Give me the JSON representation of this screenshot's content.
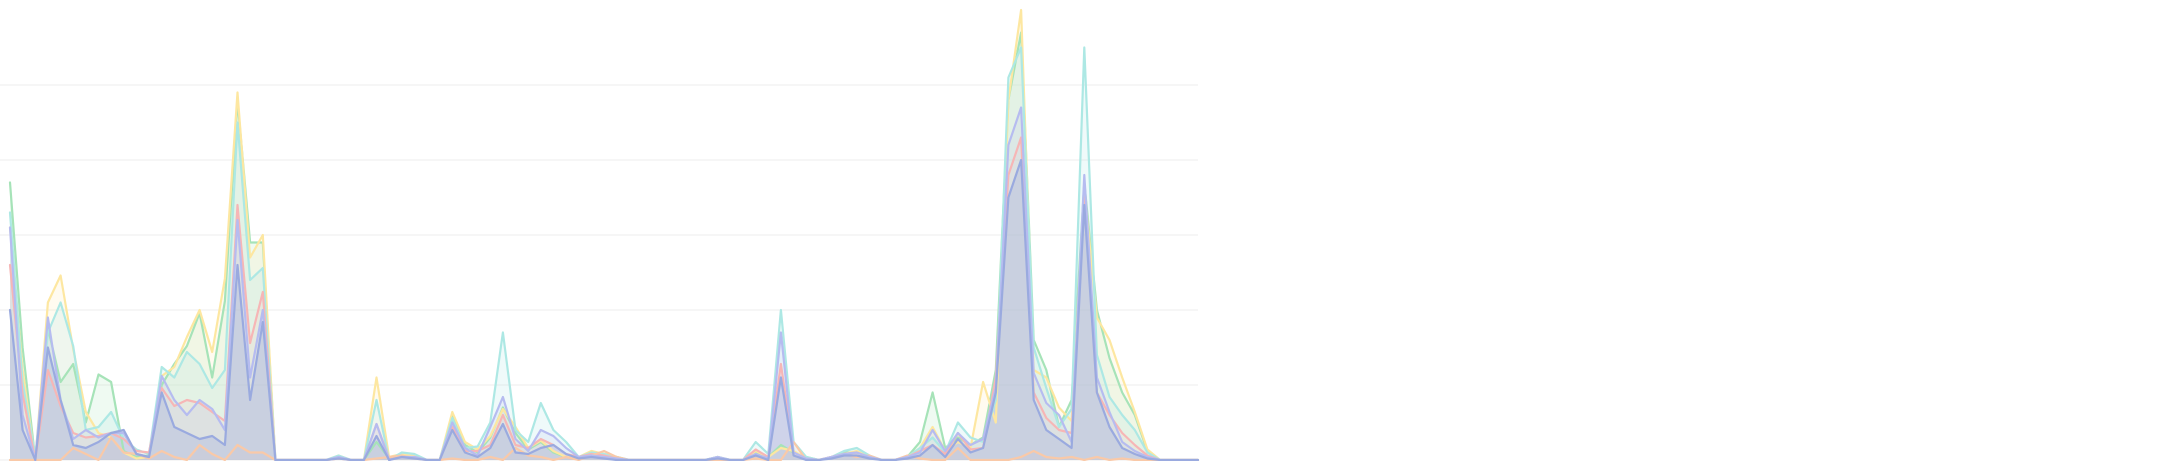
{
  "chart_data": {
    "type": "area",
    "title": "",
    "xlabel": "",
    "ylabel": "",
    "ylim": [
      0,
      300
    ],
    "grid": true,
    "legend": "none",
    "x": [
      0,
      1,
      2,
      3,
      4,
      5,
      6,
      7,
      8,
      9,
      10,
      11,
      12,
      13,
      14,
      15,
      16,
      17,
      18,
      19,
      20,
      21,
      22,
      23,
      24,
      25,
      26,
      27,
      28,
      29,
      30,
      31,
      32,
      33,
      34,
      35,
      36,
      37,
      38,
      39,
      40,
      41,
      42,
      43,
      44,
      45,
      46,
      47,
      48,
      49,
      50,
      51,
      52,
      53,
      54,
      55,
      56,
      57,
      58,
      59,
      60,
      61,
      62,
      63,
      64,
      65,
      66,
      67,
      68,
      69,
      70,
      71,
      72,
      73,
      74,
      75,
      76,
      77,
      78,
      79,
      80,
      81,
      82,
      83,
      84,
      85,
      86,
      87,
      88,
      89,
      90,
      91,
      92,
      93,
      94
    ],
    "series": [
      {
        "color": "#a6e3b8",
        "fill_opacity": 0.18,
        "values": [
          185,
          75,
          0,
          88,
          52,
          64,
          25,
          57,
          52,
          6,
          2,
          3,
          50,
          64,
          76,
          98,
          55,
          106,
          240,
          145,
          145,
          0,
          0,
          0,
          0,
          0,
          2,
          0,
          0,
          12,
          1,
          3,
          3,
          0,
          0,
          30,
          10,
          5,
          15,
          35,
          18,
          7,
          12,
          5,
          2,
          2,
          5,
          4,
          2,
          0,
          0,
          0,
          0,
          0,
          0,
          0,
          2,
          0,
          0,
          5,
          2,
          10,
          5,
          2,
          0,
          2,
          5,
          5,
          2,
          0,
          0,
          2,
          12,
          45,
          8,
          15,
          10,
          15,
          60,
          240,
          285,
          80,
          60,
          22,
          40,
          185,
          100,
          68,
          45,
          30,
          6,
          0,
          0,
          0,
          0
        ]
      },
      {
        "color": "#fde7a1",
        "fill_opacity": 0.16,
        "values": [
          155,
          60,
          0,
          105,
          123,
          74,
          32,
          18,
          15,
          5,
          1,
          2,
          56,
          62,
          82,
          100,
          72,
          121,
          245,
          135,
          150,
          0,
          0,
          0,
          0,
          0,
          3,
          0,
          0,
          55,
          2,
          4,
          3,
          0,
          0,
          32,
          12,
          7,
          16,
          34,
          22,
          8,
          13,
          6,
          2,
          2,
          6,
          4,
          2,
          0,
          0,
          0,
          0,
          0,
          0,
          0,
          2,
          0,
          0,
          6,
          2,
          8,
          6,
          1,
          0,
          2,
          4,
          6,
          2,
          0,
          0,
          2,
          8,
          22,
          6,
          12,
          8,
          52,
          25,
          240,
          300,
          60,
          55,
          35,
          26,
          180,
          95,
          80,
          55,
          32,
          7,
          0,
          0,
          0,
          0
        ]
      },
      {
        "color": "#ade8e4",
        "fill_opacity": 0.2,
        "values": [
          165,
          52,
          2,
          85,
          105,
          76,
          20,
          22,
          32,
          14,
          7,
          4,
          62,
          55,
          72,
          64,
          48,
          60,
          225,
          120,
          128,
          0,
          0,
          0,
          0,
          0,
          3,
          0,
          0,
          40,
          0,
          5,
          4,
          0,
          0,
          28,
          8,
          9,
          25,
          85,
          20,
          12,
          38,
          20,
          12,
          2,
          5,
          4,
          2,
          0,
          0,
          0,
          0,
          0,
          0,
          0,
          2,
          0,
          0,
          12,
          4,
          100,
          12,
          2,
          0,
          2,
          6,
          8,
          3,
          0,
          0,
          2,
          8,
          15,
          5,
          25,
          15,
          12,
          40,
          255,
          275,
          75,
          48,
          22,
          34,
          275,
          70,
          42,
          30,
          20,
          5,
          0,
          0,
          0,
          0
        ]
      },
      {
        "color": "#f6b6b6",
        "fill_opacity": 0.14,
        "values": [
          130,
          44,
          0,
          60,
          36,
          18,
          15,
          16,
          18,
          14,
          6,
          5,
          48,
          36,
          40,
          38,
          32,
          26,
          170,
          78,
          112,
          0,
          0,
          0,
          0,
          0,
          1,
          0,
          0,
          24,
          1,
          2,
          2,
          0,
          0,
          22,
          6,
          6,
          10,
          30,
          10,
          8,
          14,
          10,
          4,
          2,
          4,
          3,
          1,
          0,
          0,
          0,
          0,
          0,
          0,
          0,
          1,
          0,
          0,
          7,
          2,
          64,
          5,
          1,
          0,
          2,
          4,
          5,
          2,
          0,
          0,
          2,
          6,
          10,
          4,
          18,
          7,
          8,
          55,
          190,
          215,
          45,
          28,
          20,
          18,
          175,
          45,
          30,
          18,
          10,
          3,
          0,
          0,
          0,
          0
        ]
      },
      {
        "color": "#f9c9a8",
        "fill_opacity": 0.15,
        "values": [
          0,
          0,
          0,
          0,
          0,
          8,
          4,
          0,
          15,
          5,
          4,
          1,
          6,
          2,
          0,
          10,
          4,
          0,
          10,
          5,
          5,
          0,
          0,
          0,
          0,
          0,
          1,
          0,
          0,
          1,
          2,
          3,
          1,
          0,
          0,
          1,
          0,
          0,
          2,
          0,
          8,
          3,
          2,
          0,
          2,
          0,
          3,
          6,
          2,
          0,
          0,
          0,
          0,
          0,
          0,
          0,
          0,
          0,
          0,
          1,
          0,
          0,
          12,
          0,
          0,
          2,
          4,
          2,
          3,
          0,
          0,
          3,
          1,
          0,
          0,
          8,
          0,
          0,
          0,
          0,
          2,
          6,
          2,
          1,
          2,
          0,
          2,
          0,
          1,
          0,
          0,
          0,
          0,
          0,
          0
        ]
      },
      {
        "color": "#b6bcf0",
        "fill_opacity": 0.18,
        "values": [
          155,
          30,
          0,
          95,
          40,
          14,
          20,
          15,
          18,
          18,
          4,
          2,
          56,
          40,
          30,
          40,
          34,
          20,
          160,
          55,
          100,
          0,
          0,
          0,
          0,
          0,
          2,
          0,
          0,
          24,
          0,
          2,
          2,
          0,
          0,
          25,
          8,
          3,
          22,
          42,
          14,
          6,
          20,
          16,
          8,
          2,
          3,
          2,
          1,
          0,
          0,
          0,
          0,
          0,
          0,
          0,
          2,
          0,
          0,
          4,
          1,
          85,
          5,
          1,
          0,
          2,
          4,
          5,
          2,
          0,
          0,
          2,
          5,
          20,
          6,
          18,
          10,
          14,
          48,
          210,
          235,
          58,
          38,
          30,
          12,
          190,
          55,
          32,
          12,
          6,
          2,
          0,
          0,
          0,
          0
        ]
      },
      {
        "color": "#9aaadf",
        "fill_opacity": 0.3,
        "values": [
          100,
          20,
          0,
          75,
          40,
          10,
          8,
          12,
          18,
          20,
          4,
          2,
          45,
          22,
          18,
          14,
          16,
          10,
          130,
          40,
          92,
          0,
          0,
          0,
          0,
          0,
          1,
          0,
          0,
          16,
          0,
          2,
          1,
          0,
          0,
          20,
          5,
          2,
          8,
          24,
          5,
          4,
          8,
          10,
          4,
          1,
          2,
          1,
          0,
          0,
          0,
          0,
          0,
          0,
          0,
          0,
          1,
          0,
          0,
          3,
          0,
          55,
          3,
          0,
          0,
          1,
          3,
          3,
          1,
          0,
          0,
          1,
          3,
          10,
          2,
          14,
          5,
          8,
          45,
          175,
          200,
          40,
          20,
          14,
          8,
          170,
          45,
          22,
          8,
          4,
          1,
          0,
          0,
          0,
          0
        ]
      }
    ]
  }
}
